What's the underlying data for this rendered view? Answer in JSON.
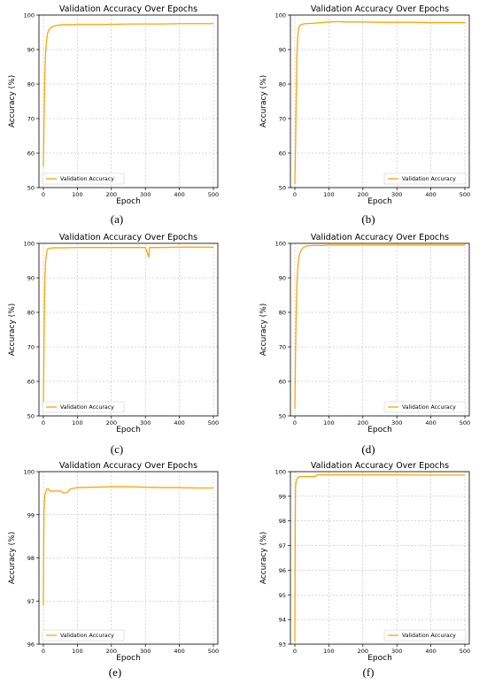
{
  "figure": {
    "captions": [
      "(a)",
      "(b)",
      "(c)",
      "(d)",
      "(e)",
      "(f)"
    ]
  },
  "chart_data": [
    {
      "type": "line",
      "title": "Validation Accuracy Over Epochs",
      "xlabel": "Epoch",
      "ylabel": "Accuracy (%)",
      "xlim": [
        -13,
        513
      ],
      "ylim": [
        50,
        100
      ],
      "xticks": [
        "0",
        "100",
        "200",
        "300",
        "400",
        "500"
      ],
      "yticks": [
        "50",
        "60",
        "70",
        "80",
        "90",
        "100"
      ],
      "grid": true,
      "legend_position": "bottom-left",
      "color": "#FFA500",
      "series": [
        {
          "name": "Validation Accuracy",
          "x": [
            0,
            2,
            4,
            6,
            8,
            10,
            12,
            15,
            20,
            25,
            30,
            40,
            50,
            60,
            80,
            100,
            150,
            200,
            250,
            300,
            350,
            400,
            450,
            500
          ],
          "y": [
            56,
            70,
            82,
            88,
            91,
            93,
            94.5,
            95.5,
            96.2,
            96.5,
            96.8,
            97,
            97.1,
            97.2,
            97.2,
            97.3,
            97.3,
            97.3,
            97.4,
            97.4,
            97.4,
            97.5,
            97.5,
            97.5
          ]
        }
      ]
    },
    {
      "type": "line",
      "title": "Validation Accuracy Over Epochs",
      "xlabel": "Epoch",
      "ylabel": "Accuracy (%)",
      "xlim": [
        -13,
        513
      ],
      "ylim": [
        50,
        100
      ],
      "xticks": [
        "0",
        "100",
        "200",
        "300",
        "400",
        "500"
      ],
      "yticks": [
        "50",
        "60",
        "70",
        "80",
        "90",
        "100"
      ],
      "grid": true,
      "legend_position": "bottom-right",
      "color": "#FFA500",
      "series": [
        {
          "name": "Validation Accuracy",
          "x": [
            0,
            2,
            4,
            6,
            8,
            10,
            12,
            15,
            20,
            30,
            50,
            80,
            100,
            120,
            150,
            200,
            250,
            300,
            350,
            400,
            450,
            500
          ],
          "y": [
            51,
            62,
            76,
            88,
            93,
            95.5,
            96.5,
            97,
            97.3,
            97.5,
            97.6,
            97.8,
            98,
            98.1,
            98,
            98,
            97.9,
            97.9,
            97.9,
            97.8,
            97.8,
            97.8
          ]
        }
      ]
    },
    {
      "type": "line",
      "title": "Validation Accuracy Over Epochs",
      "xlabel": "Epoch",
      "ylabel": "Accuracy (%)",
      "xlim": [
        -13,
        513
      ],
      "ylim": [
        50,
        100
      ],
      "xticks": [
        "0",
        "100",
        "200",
        "300",
        "400",
        "500"
      ],
      "yticks": [
        "50",
        "60",
        "70",
        "80",
        "90",
        "100"
      ],
      "grid": true,
      "legend_position": "bottom-left",
      "color": "#FFA500",
      "series": [
        {
          "name": "Validation Accuracy",
          "x": [
            0,
            2,
            4,
            6,
            8,
            10,
            12,
            15,
            20,
            30,
            50,
            100,
            150,
            200,
            250,
            300,
            310,
            312,
            315,
            350,
            400,
            450,
            500
          ],
          "y": [
            53,
            72,
            88,
            94,
            96,
            97.5,
            98.3,
            98.5,
            98.6,
            98.7,
            98.7,
            98.8,
            98.8,
            98.8,
            98.8,
            98.8,
            96,
            98.8,
            98.8,
            98.8,
            98.9,
            98.9,
            98.9
          ]
        }
      ]
    },
    {
      "type": "line",
      "title": "Validation Accuracy Over Epochs",
      "xlabel": "Epoch",
      "ylabel": "Accuracy (%)",
      "xlim": [
        -13,
        513
      ],
      "ylim": [
        50,
        100
      ],
      "xticks": [
        "0",
        "100",
        "200",
        "300",
        "400",
        "500"
      ],
      "yticks": [
        "50",
        "60",
        "70",
        "80",
        "90",
        "100"
      ],
      "grid": true,
      "legend_position": "bottom-right",
      "color": "#FFA500",
      "series": [
        {
          "name": "Validation Accuracy",
          "x": [
            0,
            2,
            4,
            6,
            8,
            10,
            12,
            15,
            20,
            25,
            30,
            40,
            50,
            80,
            100,
            150,
            200,
            250,
            300,
            350,
            400,
            450,
            500
          ],
          "y": [
            52,
            68,
            80,
            88,
            92,
            94.5,
            96,
            97.2,
            98.2,
            98.8,
            99.1,
            99.3,
            99.4,
            99.4,
            99.5,
            99.5,
            99.5,
            99.5,
            99.5,
            99.5,
            99.5,
            99.5,
            99.5
          ]
        }
      ]
    },
    {
      "type": "line",
      "title": "Validation Accuracy Over Epochs",
      "xlabel": "Epoch",
      "ylabel": "Accuracy (%)",
      "xlim": [
        -13,
        513
      ],
      "ylim": [
        96,
        100
      ],
      "xticks": [
        "0",
        "100",
        "200",
        "300",
        "400",
        "500"
      ],
      "yticks": [
        "96",
        "97",
        "98",
        "99",
        "100"
      ],
      "grid": true,
      "legend_position": "bottom-left",
      "color": "#FFA500",
      "series": [
        {
          "name": "Validation Accuracy",
          "x": [
            0,
            1,
            2,
            3,
            4,
            6,
            8,
            10,
            15,
            20,
            30,
            50,
            60,
            70,
            80,
            100,
            150,
            200,
            250,
            300,
            350,
            400,
            450,
            500
          ],
          "y": [
            96.9,
            98.4,
            99.1,
            99.3,
            99.45,
            99.5,
            99.55,
            99.6,
            99.6,
            99.55,
            99.55,
            99.55,
            99.5,
            99.52,
            99.6,
            99.63,
            99.64,
            99.65,
            99.65,
            99.64,
            99.63,
            99.63,
            99.62,
            99.62
          ]
        }
      ]
    },
    {
      "type": "line",
      "title": "Validation Accuracy Over Epochs",
      "xlabel": "Epoch",
      "ylabel": "Accuracy (%)",
      "xlim": [
        -13,
        513
      ],
      "ylim": [
        93,
        100
      ],
      "xticks": [
        "0",
        "100",
        "200",
        "300",
        "400",
        "500"
      ],
      "yticks": [
        "93",
        "94",
        "95",
        "96",
        "97",
        "98",
        "99",
        "100"
      ],
      "grid": true,
      "legend_position": "bottom-right",
      "color": "#FFA500",
      "series": [
        {
          "name": "Validation Accuracy",
          "x": [
            0,
            1,
            2,
            4,
            6,
            8,
            10,
            15,
            20,
            40,
            60,
            65,
            80,
            100,
            200,
            300,
            400,
            500
          ],
          "y": [
            93.1,
            97.5,
            99.4,
            99.6,
            99.7,
            99.75,
            99.78,
            99.8,
            99.8,
            99.8,
            99.8,
            99.87,
            99.87,
            99.87,
            99.87,
            99.87,
            99.86,
            99.86
          ]
        }
      ]
    }
  ]
}
